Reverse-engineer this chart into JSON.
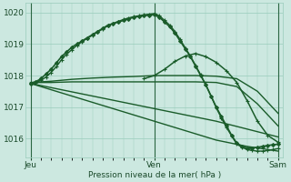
{
  "xlabel": "Pression niveau de la mer( hPa )",
  "ylim": [
    1015.4,
    1020.3
  ],
  "xlim": [
    -1,
    49
  ],
  "yticks": [
    1016,
    1017,
    1018,
    1019,
    1020
  ],
  "xtick_positions": [
    0,
    24,
    48
  ],
  "xtick_labels": [
    "Jeu",
    "Ven",
    "Sam"
  ],
  "bg_color": "#cce8e0",
  "grid_color": "#99ccbb",
  "line_color": "#1a5c2a",
  "lines": [
    {
      "x": [
        0,
        1,
        2,
        3,
        4,
        5,
        6,
        7,
        8,
        9,
        10,
        11,
        12,
        13,
        14,
        15,
        16,
        17,
        18,
        19,
        20,
        21,
        22,
        23,
        24,
        25,
        26,
        27,
        28,
        29,
        30,
        31,
        32,
        33,
        34,
        35,
        36,
        37,
        38,
        39,
        40,
        41,
        42,
        43,
        44,
        45,
        46,
        47,
        48
      ],
      "y": [
        1017.75,
        1017.8,
        1017.9,
        1018.05,
        1018.2,
        1018.4,
        1018.6,
        1018.75,
        1018.9,
        1019.0,
        1019.1,
        1019.2,
        1019.3,
        1019.4,
        1019.5,
        1019.6,
        1019.65,
        1019.7,
        1019.75,
        1019.8,
        1019.85,
        1019.88,
        1019.9,
        1019.92,
        1019.93,
        1019.85,
        1019.7,
        1019.55,
        1019.35,
        1019.1,
        1018.85,
        1018.6,
        1018.3,
        1018.0,
        1017.7,
        1017.35,
        1017.0,
        1016.7,
        1016.4,
        1016.1,
        1015.85,
        1015.75,
        1015.7,
        1015.7,
        1015.72,
        1015.75,
        1015.78,
        1015.8,
        1015.82
      ],
      "marker": "D",
      "ms": 2.0,
      "lw": 1.2
    },
    {
      "x": [
        0,
        1,
        2,
        3,
        4,
        5,
        6,
        7,
        8,
        9,
        10,
        11,
        12,
        13,
        14,
        15,
        16,
        17,
        18,
        19,
        20,
        21,
        22,
        23,
        24,
        25,
        26,
        27,
        28,
        29,
        30,
        31,
        32,
        33,
        34,
        35,
        36,
        37,
        38,
        39,
        40,
        41,
        42,
        43,
        44,
        45,
        46,
        47,
        48
      ],
      "y": [
        1017.75,
        1017.78,
        1017.85,
        1017.95,
        1018.1,
        1018.28,
        1018.5,
        1018.68,
        1018.82,
        1018.96,
        1019.08,
        1019.18,
        1019.28,
        1019.38,
        1019.48,
        1019.58,
        1019.66,
        1019.72,
        1019.78,
        1019.83,
        1019.87,
        1019.9,
        1019.93,
        1019.95,
        1019.97,
        1019.9,
        1019.75,
        1019.6,
        1019.4,
        1019.15,
        1018.88,
        1018.62,
        1018.32,
        1018.02,
        1017.7,
        1017.35,
        1016.98,
        1016.65,
        1016.35,
        1016.08,
        1015.82,
        1015.72,
        1015.65,
        1015.62,
        1015.6,
        1015.6,
        1015.62,
        1015.65,
        1015.68
      ],
      "marker": "+",
      "ms": 3.5,
      "lw": 1.0
    },
    {
      "x": [
        0,
        4,
        8,
        12,
        16,
        20,
        24,
        28,
        32,
        36,
        40,
        44,
        48
      ],
      "y": [
        1017.78,
        1017.82,
        1017.88,
        1017.92,
        1017.95,
        1017.97,
        1018.0,
        1018.0,
        1018.0,
        1017.98,
        1017.9,
        1017.5,
        1016.8
      ],
      "marker": null,
      "ms": 0,
      "lw": 1.0
    },
    {
      "x": [
        0,
        4,
        8,
        12,
        16,
        20,
        24,
        28,
        32,
        36,
        40,
        44,
        48
      ],
      "y": [
        1017.78,
        1017.78,
        1017.8,
        1017.8,
        1017.8,
        1017.8,
        1017.8,
        1017.8,
        1017.8,
        1017.78,
        1017.65,
        1017.1,
        1016.4
      ],
      "marker": null,
      "ms": 0,
      "lw": 1.0
    },
    {
      "x": [
        0,
        6,
        12,
        18,
        24,
        30,
        36,
        42,
        48
      ],
      "y": [
        1017.75,
        1017.55,
        1017.35,
        1017.15,
        1016.95,
        1016.75,
        1016.55,
        1016.3,
        1016.05
      ],
      "marker": null,
      "ms": 0,
      "lw": 1.0
    },
    {
      "x": [
        0,
        6,
        12,
        18,
        24,
        30,
        36,
        42,
        48
      ],
      "y": [
        1017.75,
        1017.45,
        1017.15,
        1016.85,
        1016.55,
        1016.25,
        1015.95,
        1015.75,
        1015.6
      ],
      "marker": null,
      "ms": 0,
      "lw": 1.0
    },
    {
      "x": [
        22,
        24,
        26,
        28,
        30,
        32,
        34,
        36,
        38,
        40,
        42,
        44,
        46,
        48
      ],
      "y": [
        1017.9,
        1018.0,
        1018.2,
        1018.45,
        1018.62,
        1018.7,
        1018.6,
        1018.42,
        1018.15,
        1017.78,
        1017.2,
        1016.55,
        1016.1,
        1015.88
      ],
      "marker": "+",
      "ms": 3.0,
      "lw": 1.1
    }
  ],
  "vline_x": [
    0,
    24,
    48
  ],
  "vline_color": "#2a6642"
}
